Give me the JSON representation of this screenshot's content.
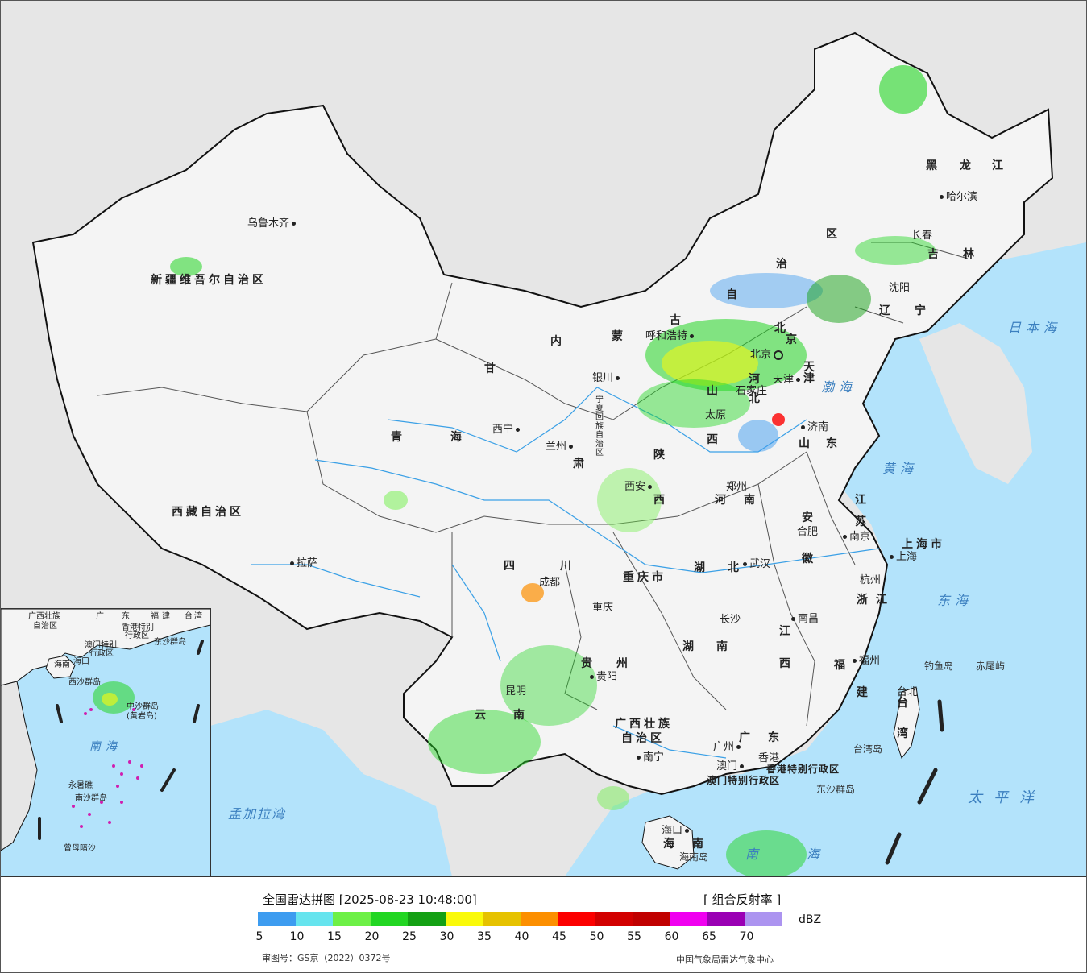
{
  "legend": {
    "title": "全国雷达拼图 [2025-08-23 10:48:00]",
    "product": "[ 组合反射率 ]",
    "unit": "dBZ",
    "colors": [
      "#3d9cf0",
      "#66e4ee",
      "#6df046",
      "#22d622",
      "#14a014",
      "#fafa0a",
      "#e6c200",
      "#fc8f00",
      "#fc0000",
      "#d20000",
      "#c00000",
      "#f000f0",
      "#9a00b4",
      "#ac94f0"
    ],
    "ticks": [
      "5",
      "10",
      "15",
      "20",
      "25",
      "30",
      "35",
      "40",
      "45",
      "50",
      "55",
      "60",
      "65",
      "70"
    ],
    "approval": "审图号：GS京（2022）0372号",
    "org": "中国气象局雷达气象中心"
  },
  "map": {
    "colors": {
      "sea": "#b3e3fb",
      "land": "#f4f4f4",
      "foreign": "#e6e6e6",
      "border": "#111111",
      "river": "#3aa0e6"
    },
    "provinces": [
      "新疆维吾尔自治区",
      "西藏自治区",
      "青",
      "海",
      "甘",
      "肃",
      "内",
      "蒙",
      "古",
      "自",
      "治",
      "区",
      "黑",
      "龙",
      "江",
      "吉",
      "林",
      "辽",
      "宁",
      "河",
      "北",
      "山",
      "西",
      "山",
      "东",
      "河",
      "南",
      "陕",
      "西",
      "江",
      "苏",
      "安",
      "徽",
      "湖",
      "北",
      "四",
      "川",
      "重庆市",
      "贵",
      "州",
      "云",
      "南",
      "湖",
      "南",
      "江",
      "西",
      "浙",
      "江",
      "福",
      "建",
      "广西壮族",
      "自治区",
      "广",
      "东",
      "海",
      "南",
      "宁夏回族自治区",
      "上海市",
      "台",
      "湾",
      "天",
      "津",
      "北",
      "京",
      "香港特别行政区",
      "澳门特别行政区"
    ],
    "cities": [
      "乌鲁木齐",
      "拉萨",
      "西宁",
      "兰州",
      "银川",
      "呼和浩特",
      "北京",
      "天津",
      "石家庄",
      "太原",
      "济南",
      "郑州",
      "西安",
      "沈阳",
      "长春",
      "哈尔滨",
      "合肥",
      "南京",
      "上海",
      "杭州",
      "武汉",
      "成都",
      "重庆",
      "长沙",
      "南昌",
      "福州",
      "贵阳",
      "昆明",
      "南宁",
      "广州",
      "澳门",
      "香港",
      "海口",
      "台北"
    ],
    "seas": [
      "日本海",
      "渤海",
      "黄海",
      "东海",
      "太平洋",
      "孟加拉湾",
      "南海"
    ],
    "islands": [
      "钓鱼岛",
      "赤尾屿",
      "台湾岛",
      "东沙群岛",
      "海南岛"
    ]
  },
  "inset": {
    "labels": [
      "广西壮族",
      "自治区",
      "广",
      "东",
      "福",
      "建",
      "台",
      "湾",
      "香港特别",
      "行政区",
      "澳门特别",
      "行政区",
      "东沙群岛",
      "海南",
      "海口",
      "西沙群岛",
      "中沙群岛",
      "(黄岩岛)",
      "永暑礁",
      "南沙群岛",
      "曾母暗沙"
    ],
    "sea": "南海"
  }
}
